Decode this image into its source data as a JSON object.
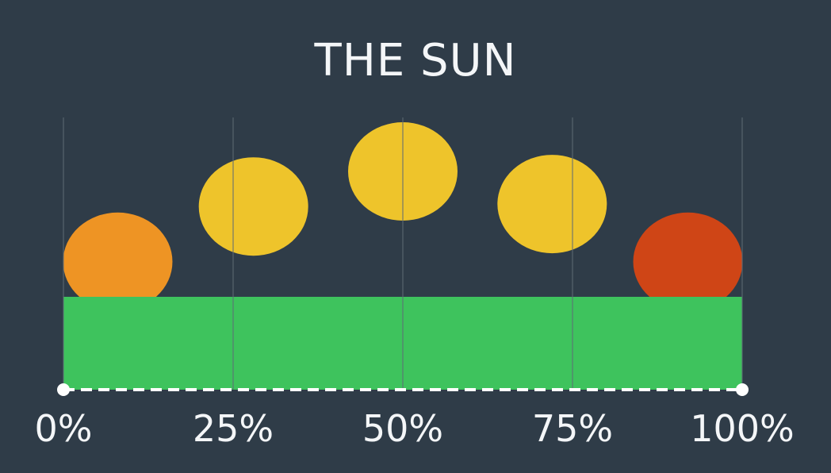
{
  "title": "THE SUN",
  "timeline": {
    "ticks": [
      {
        "label": "0%",
        "value": 0
      },
      {
        "label": "25%",
        "value": 25
      },
      {
        "label": "50%",
        "value": 50
      },
      {
        "label": "75%",
        "value": 75
      },
      {
        "label": "100%",
        "value": 100
      }
    ]
  },
  "suns": [
    {
      "position": 8,
      "height": 0.28,
      "color": "#ee9424",
      "state": "rising"
    },
    {
      "position": 28,
      "height": 0.72,
      "color": "#eec42b",
      "state": "up"
    },
    {
      "position": 50,
      "height": 1.0,
      "color": "#eec42b",
      "state": "noon"
    },
    {
      "position": 72,
      "height": 0.74,
      "color": "#eec42b",
      "state": "up"
    },
    {
      "position": 92,
      "height": 0.28,
      "color": "#cf4516",
      "state": "setting"
    }
  ],
  "colors": {
    "background": "#2f3c48",
    "ground": "#3ec35d",
    "gridline": "#5f6c76",
    "track": "#ffffff",
    "text": "#f4f6f8"
  }
}
